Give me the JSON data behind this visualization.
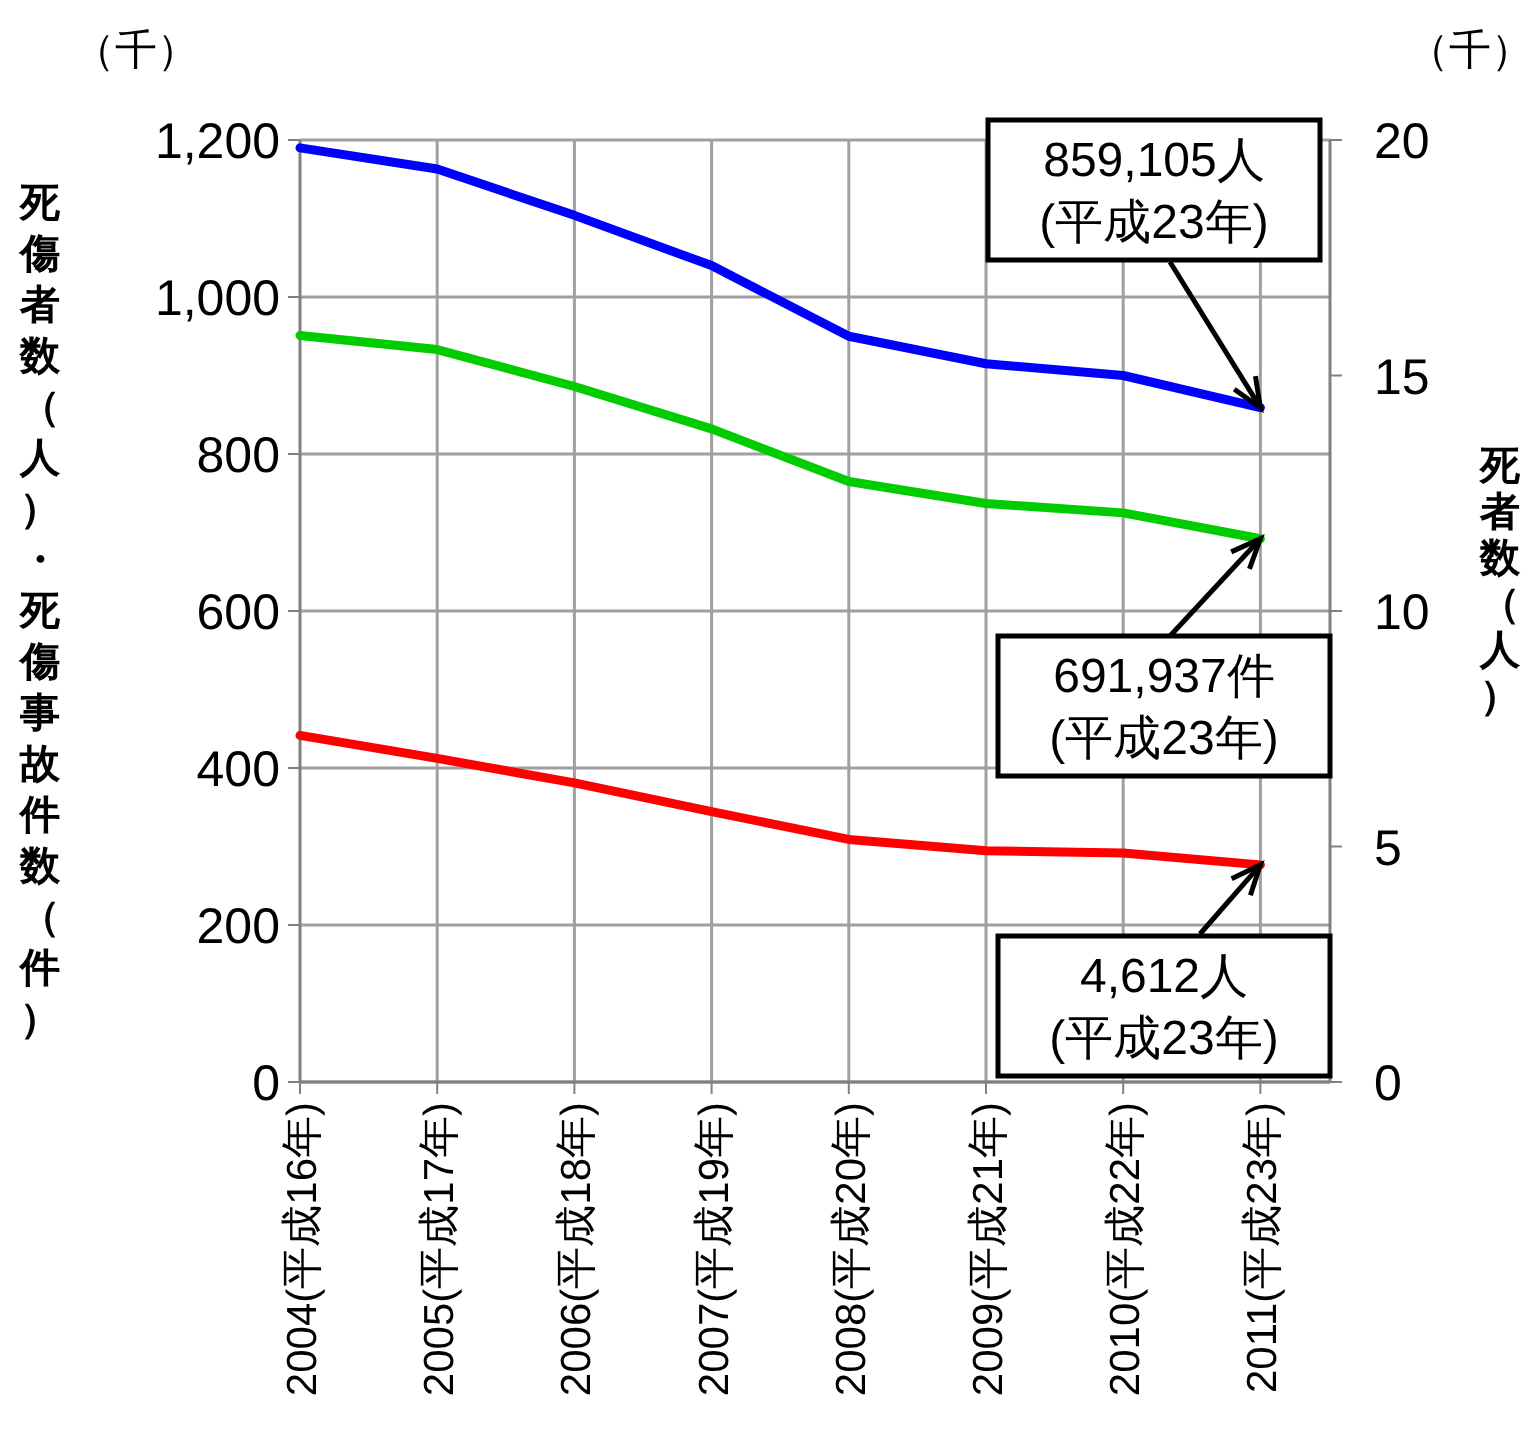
{
  "chart_data": {
    "type": "line",
    "ylabel": "死傷者数（人）・死傷事故件数（件）",
    "y2label": "死者数（人）",
    "categories": [
      "2004(平成16年)",
      "2005(平成17年)",
      "2006(平成18年)",
      "2007(平成19年)",
      "2008(平成20年)",
      "2009(平成21年)",
      "2010(平成22年)",
      "2011(平成23年)"
    ],
    "series": [
      {
        "color": "#0000ff",
        "values": [
          1190,
          1163,
          1104,
          1040,
          950,
          915,
          900,
          859
        ]
      },
      {
        "color": "#00cc00",
        "values": [
          951,
          933,
          886,
          832,
          765,
          737,
          725,
          692
        ]
      },
      {
        "color": "#ff0000",
        "axis": "y2",
        "values": [
          7.36,
          6.87,
          6.35,
          5.74,
          5.15,
          4.91,
          4.86,
          4.61
        ]
      }
    ],
    "ylim": [
      0,
      1200
    ],
    "yticks": [
      0,
      200,
      400,
      600,
      800,
      {
        "value": 1000,
        "label": "1,000"
      },
      {
        "value": 1200,
        "label": "1,200"
      }
    ],
    "y2lim": [
      0,
      20
    ],
    "y2ticks": [
      0,
      5,
      10,
      15,
      20
    ],
    "grid": true,
    "line_style": "solid",
    "annotations": [
      "（千）",
      "（千）",
      {
        "text": "859,105人\n(平成23年)",
        "x": "2011(平成23年)",
        "y": 859
      },
      {
        "text": "691,937件\n(平成23年)",
        "x": "2011(平成23年)",
        "y": 692
      },
      "4,612人\n(平成23年)"
    ]
  }
}
